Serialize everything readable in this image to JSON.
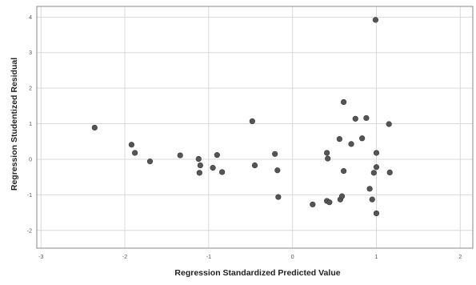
{
  "chart_data": {
    "type": "scatter",
    "title": "",
    "xlabel": "Regression Standardized Predicted Value",
    "ylabel": "Regression Studentized Residual",
    "xlim": [
      -3.05,
      2.15
    ],
    "ylim": [
      -2.5,
      4.3
    ],
    "xticks": [
      -3,
      -2,
      -1,
      0,
      1,
      2
    ],
    "yticks": [
      -2,
      -1,
      0,
      1,
      2,
      3,
      4
    ],
    "xtick_labels": [
      "-3",
      "-2",
      "-1",
      "0",
      "1",
      "2"
    ],
    "ytick_labels": [
      "-2",
      "-1",
      "0",
      "1",
      "2",
      "3",
      "4"
    ],
    "grid": true,
    "point_color": "#555555",
    "grid_color": "#d9d9d9",
    "points": [
      {
        "x": -2.36,
        "y": 0.89
      },
      {
        "x": -1.92,
        "y": 0.41
      },
      {
        "x": -1.88,
        "y": 0.18
      },
      {
        "x": -1.7,
        "y": -0.06
      },
      {
        "x": -1.34,
        "y": 0.11
      },
      {
        "x": -1.12,
        "y": 0.01
      },
      {
        "x": -1.1,
        "y": -0.17
      },
      {
        "x": -1.11,
        "y": -0.38
      },
      {
        "x": -0.95,
        "y": -0.24
      },
      {
        "x": -0.9,
        "y": 0.12
      },
      {
        "x": -0.84,
        "y": -0.36
      },
      {
        "x": -0.48,
        "y": 1.07
      },
      {
        "x": -0.45,
        "y": -0.17
      },
      {
        "x": -0.21,
        "y": 0.15
      },
      {
        "x": -0.18,
        "y": -0.31
      },
      {
        "x": -0.17,
        "y": -1.06
      },
      {
        "x": 0.24,
        "y": -1.27
      },
      {
        "x": 0.41,
        "y": 0.18
      },
      {
        "x": 0.42,
        "y": 0.02
      },
      {
        "x": 0.41,
        "y": -1.17
      },
      {
        "x": 0.44,
        "y": -1.21
      },
      {
        "x": 0.56,
        "y": 0.57
      },
      {
        "x": 0.57,
        "y": -1.13
      },
      {
        "x": 0.59,
        "y": -1.04
      },
      {
        "x": 0.61,
        "y": 1.61
      },
      {
        "x": 0.61,
        "y": -0.33
      },
      {
        "x": 0.7,
        "y": 0.43
      },
      {
        "x": 0.75,
        "y": 1.14
      },
      {
        "x": 0.83,
        "y": 0.59
      },
      {
        "x": 0.88,
        "y": 1.16
      },
      {
        "x": 0.92,
        "y": -0.83
      },
      {
        "x": 0.95,
        "y": -1.13
      },
      {
        "x": 0.97,
        "y": -0.38
      },
      {
        "x": 0.99,
        "y": 3.92
      },
      {
        "x": 1.0,
        "y": 0.18
      },
      {
        "x": 1.0,
        "y": -0.22
      },
      {
        "x": 1.0,
        "y": -1.52
      },
      {
        "x": 1.15,
        "y": 0.99
      },
      {
        "x": 1.16,
        "y": -0.37
      }
    ]
  }
}
